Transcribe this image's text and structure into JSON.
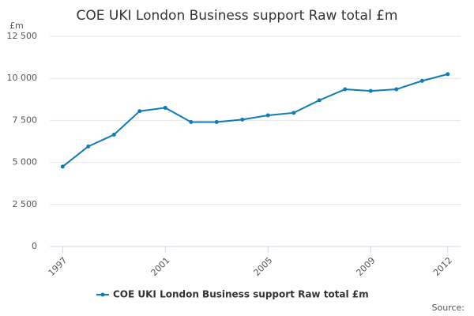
{
  "chart_data": {
    "type": "line",
    "title": "COE UKI London Business support Raw total £m",
    "y_label": "£m",
    "source": "Source:",
    "x": [
      1997,
      1998,
      1999,
      2000,
      2001,
      2002,
      2003,
      2004,
      2005,
      2006,
      2007,
      2008,
      2009,
      2010,
      2011,
      2012
    ],
    "series": [
      {
        "name": "COE UKI London Business support Raw total £m",
        "color": "#0f7bb7",
        "values": [
          4750,
          5950,
          6650,
          8050,
          8250,
          7400,
          7400,
          7550,
          7800,
          7950,
          8700,
          9350,
          9250,
          9350,
          9850,
          10250
        ]
      }
    ],
    "xlim": [
      1996.5,
      2012.5
    ],
    "xticks": [
      1997,
      2001,
      2005,
      2009,
      2012
    ],
    "ylim": [
      0,
      12500
    ],
    "yticks": [
      0,
      {
        "value": 2500,
        "label": "2 500"
      },
      {
        "value": 5000,
        "label": "5 000"
      },
      {
        "value": 7500,
        "label": "7 500"
      },
      {
        "value": 10000,
        "label": "10 000"
      },
      {
        "value": 12500,
        "label": "12 500"
      }
    ],
    "grid": true
  }
}
